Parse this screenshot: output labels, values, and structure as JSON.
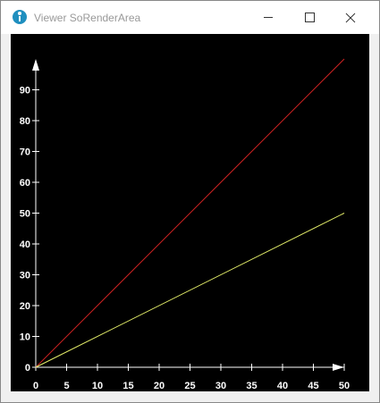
{
  "window": {
    "title": "Viewer SoRenderArea",
    "icon": "app-icon",
    "controls": {
      "minimize": "minimize-icon",
      "maximize": "maximize-icon",
      "close": "close-icon"
    }
  },
  "chart_data": {
    "type": "line",
    "x": [
      0,
      50
    ],
    "series": [
      {
        "values": [
          0,
          100
        ],
        "color": "#cc2222"
      },
      {
        "values": [
          0,
          50
        ],
        "color": "#e6f06a"
      }
    ],
    "xlim": [
      0,
      50
    ],
    "ylim": [
      0,
      100
    ],
    "x_ticks": [
      0,
      5,
      10,
      15,
      20,
      25,
      30,
      35,
      40,
      45,
      50
    ],
    "y_ticks": [
      0,
      10,
      20,
      30,
      40,
      50,
      60,
      70,
      80,
      90
    ],
    "background": "#000000",
    "axis_color": "#ffffff",
    "grid": false
  }
}
